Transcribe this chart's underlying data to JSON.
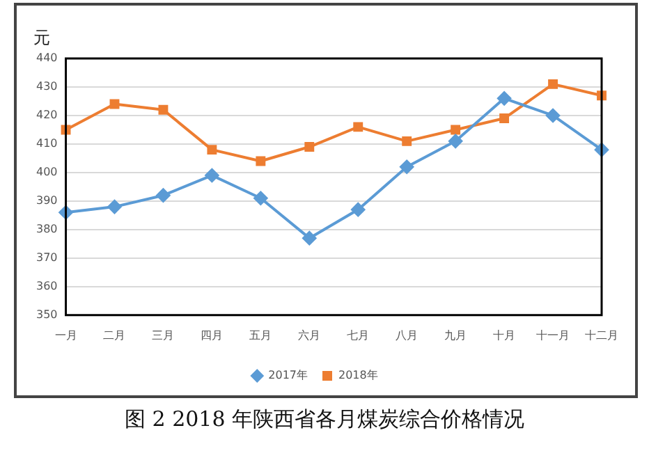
{
  "chart_data": {
    "type": "line",
    "title": "图 2 2018 年陕西省各月煤炭综合价格情况",
    "ylabel": "元",
    "categories": [
      "一月",
      "二月",
      "三月",
      "四月",
      "五月",
      "六月",
      "七月",
      "八月",
      "九月",
      "十月",
      "十一月",
      "十二月"
    ],
    "series": [
      {
        "name": "2017年",
        "color": "#5b9bd5",
        "marker": "diamond",
        "values": [
          386,
          388,
          392,
          399,
          391,
          377,
          387,
          402,
          411,
          426,
          420,
          408
        ]
      },
      {
        "name": "2018年",
        "color": "#ed7d31",
        "marker": "square",
        "values": [
          415,
          424,
          422,
          408,
          404,
          409,
          416,
          411,
          415,
          419,
          431,
          427
        ]
      }
    ],
    "ylim": [
      350,
      440
    ],
    "yticks": [
      350,
      360,
      370,
      380,
      390,
      400,
      410,
      420,
      430,
      440
    ],
    "grid": "y",
    "legend": "bottom"
  }
}
